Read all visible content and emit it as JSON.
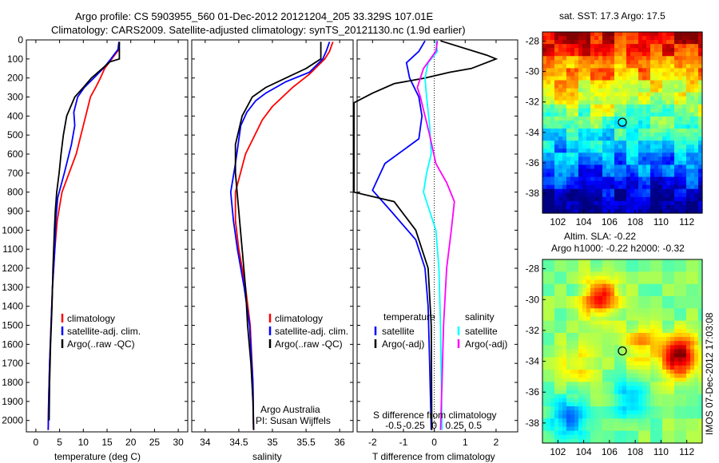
{
  "header": {
    "line1": "Argo profile: CS 5903955_560 01-Dec-2012 20121204_205 33.329S 107.01E",
    "line2": "Climatology: CARS2009. Satellite-adjusted climatology: synTS_20121130.nc (1.9d earlier)"
  },
  "side_stamp": "IMOS 07-Dec-2012 17:03:08",
  "colors": {
    "climatology": "#ff0000",
    "satellite": "#0000ff",
    "argo": "#000000",
    "sal_sat": "#00ffff",
    "sal_argo": "#ff00ff"
  },
  "chart_data": [
    {
      "type": "line",
      "xlabel": "temperature (deg C)",
      "xlim": [
        -2,
        32
      ],
      "xticks": [
        0,
        5,
        10,
        15,
        20,
        25,
        30
      ],
      "ylim": [
        2060,
        0
      ],
      "yticks": [
        0,
        100,
        200,
        300,
        400,
        500,
        600,
        700,
        800,
        900,
        1000,
        1100,
        1200,
        1300,
        1400,
        1500,
        1600,
        1700,
        1800,
        1900,
        2000
      ],
      "legend": [
        "climatology",
        "satellite-adj. clim.",
        "Argo(..raw -QC)"
      ],
      "series": [
        {
          "name": "climatology",
          "color": "#ff0000",
          "points": [
            [
              17.6,
              10
            ],
            [
              17.5,
              50
            ],
            [
              16,
              100
            ],
            [
              14.5,
              150
            ],
            [
              13.6,
              200
            ],
            [
              12.6,
              250
            ],
            [
              11.5,
              300
            ],
            [
              10.5,
              400
            ],
            [
              9.5,
              500
            ],
            [
              8.5,
              600
            ],
            [
              7,
              700
            ],
            [
              5.5,
              800
            ],
            [
              4.5,
              950
            ],
            [
              4,
              1100
            ],
            [
              3.5,
              1300
            ],
            [
              3.2,
              1500
            ],
            [
              2.9,
              1700
            ],
            [
              2.7,
              1900
            ],
            [
              2.6,
              2050
            ]
          ]
        },
        {
          "name": "satellite-adj. clim.",
          "color": "#0000ff",
          "points": [
            [
              17.5,
              10
            ],
            [
              17.3,
              50
            ],
            [
              15.8,
              100
            ],
            [
              14.2,
              150
            ],
            [
              12.2,
              200
            ],
            [
              10.2,
              250
            ],
            [
              8.8,
              300
            ],
            [
              8,
              380
            ],
            [
              8.2,
              450
            ],
            [
              7.5,
              550
            ],
            [
              6,
              700
            ],
            [
              4.6,
              830
            ],
            [
              4.2,
              950
            ],
            [
              4,
              1100
            ],
            [
              3.5,
              1300
            ],
            [
              3.2,
              1500
            ],
            [
              2.9,
              1700
            ],
            [
              2.7,
              1900
            ],
            [
              2.6,
              2050
            ]
          ]
        },
        {
          "name": "Argo(..raw -QC)",
          "color": "#000000",
          "points": [
            [
              17.6,
              10
            ],
            [
              17.6,
              30
            ],
            [
              17.6,
              100
            ],
            [
              15.6,
              115
            ],
            [
              14,
              150
            ],
            [
              11.7,
              200
            ],
            [
              10,
              250
            ],
            [
              8.2,
              300
            ],
            [
              6.5,
              400
            ],
            [
              5.8,
              500
            ],
            [
              5.3,
              600
            ],
            [
              4.9,
              700
            ],
            [
              4.4,
              800
            ],
            [
              4.1,
              900
            ],
            [
              3.9,
              1000
            ],
            [
              3.6,
              1200
            ],
            [
              3.4,
              1400
            ],
            [
              3.1,
              1600
            ],
            [
              2.9,
              1800
            ],
            [
              2.8,
              2000
            ]
          ]
        }
      ]
    },
    {
      "type": "line",
      "xlabel": "salinity",
      "xlim": [
        33.8,
        36.2
      ],
      "xticks": [
        34,
        34.5,
        35,
        35.5,
        36
      ],
      "ylim": [
        2060,
        0
      ],
      "legend": [
        "climatology",
        "satellite-adj. clim.",
        "Argo(..raw -QC)"
      ],
      "annotations": [
        "Argo Australia",
        "PI: Susan Wijffels"
      ],
      "series": [
        {
          "name": "climatology",
          "color": "#ff0000",
          "points": [
            [
              35.9,
              10
            ],
            [
              35.85,
              60
            ],
            [
              35.78,
              100
            ],
            [
              35.55,
              180
            ],
            [
              35.3,
              250
            ],
            [
              35.15,
              300
            ],
            [
              35.0,
              350
            ],
            [
              34.85,
              420
            ],
            [
              34.6,
              600
            ],
            [
              34.45,
              800
            ],
            [
              34.45,
              950
            ],
            [
              34.5,
              1100
            ],
            [
              34.6,
              1300
            ],
            [
              34.67,
              1500
            ],
            [
              34.71,
              1800
            ],
            [
              34.72,
              2050
            ]
          ]
        },
        {
          "name": "satellite-adj. clim.",
          "color": "#0000ff",
          "points": [
            [
              35.85,
              10
            ],
            [
              35.8,
              60
            ],
            [
              35.75,
              100
            ],
            [
              35.55,
              170
            ],
            [
              35.2,
              220
            ],
            [
              34.9,
              280
            ],
            [
              34.75,
              320
            ],
            [
              34.62,
              380
            ],
            [
              34.53,
              450
            ],
            [
              34.45,
              650
            ],
            [
              34.38,
              800
            ],
            [
              34.42,
              950
            ],
            [
              34.48,
              1100
            ],
            [
              34.58,
              1300
            ],
            [
              34.66,
              1500
            ],
            [
              34.71,
              1800
            ],
            [
              34.72,
              2050
            ]
          ]
        },
        {
          "name": "Argo(..raw -QC)",
          "color": "#000000",
          "points": [
            [
              35.72,
              10
            ],
            [
              35.72,
              100
            ],
            [
              35.5,
              150
            ],
            [
              35.2,
              200
            ],
            [
              34.9,
              250
            ],
            [
              34.7,
              300
            ],
            [
              34.55,
              400
            ],
            [
              34.45,
              550
            ],
            [
              34.45,
              700
            ],
            [
              34.5,
              900
            ],
            [
              34.55,
              1100
            ],
            [
              34.6,
              1300
            ],
            [
              34.63,
              1500
            ],
            [
              34.68,
              1700
            ],
            [
              34.71,
              1900
            ],
            [
              34.72,
              2050
            ]
          ]
        }
      ]
    },
    {
      "type": "line",
      "xlabel": "T difference from climatology",
      "top_label": "S difference from climatology",
      "xlim": [
        -2.5,
        2.7
      ],
      "xticks": [
        -2,
        -1,
        0,
        1,
        2
      ],
      "sticks": [
        "-0.5",
        "-0.25",
        "0",
        "0.25",
        "0.5"
      ],
      "ylim": [
        2060,
        0
      ],
      "legend_left_title": "temperature",
      "legend_right_title": "salinity",
      "legend": [
        "satellite",
        "Argo(-adj)",
        "satellite",
        "Argo(-adj)"
      ],
      "series": [
        {
          "name": "satellite",
          "color": "#0000ff",
          "points": [
            [
              -0.3,
              5
            ],
            [
              -0.5,
              60
            ],
            [
              -0.9,
              120
            ],
            [
              -0.8,
              200
            ],
            [
              -0.5,
              300
            ],
            [
              -0.4,
              400
            ],
            [
              -0.5,
              520
            ],
            [
              -1.6,
              650
            ],
            [
              -2,
              790
            ],
            [
              -1.4,
              900
            ],
            [
              -0.6,
              1050
            ],
            [
              -0.3,
              1200
            ],
            [
              -0.2,
              1400
            ],
            [
              -0.15,
              1700
            ],
            [
              -0.1,
              2050
            ]
          ]
        },
        {
          "name": "Argo(-adj)",
          "color": "#000000",
          "points": [
            [
              0.2,
              5
            ],
            [
              1.7,
              80
            ],
            [
              2.0,
              100
            ],
            [
              1.2,
              150
            ],
            [
              0.5,
              170
            ],
            [
              -0.3,
              200
            ],
            [
              -1.3,
              230
            ],
            [
              -2.0,
              280
            ],
            [
              -2.6,
              330
            ],
            [
              -2.6,
              800
            ],
            [
              -1.3,
              850
            ],
            [
              -0.6,
              1000
            ],
            [
              -0.2,
              1200
            ],
            [
              -0.1,
              1500
            ],
            [
              -0.08,
              2050
            ]
          ]
        },
        {
          "name": "satellite",
          "color": "#00ffff",
          "points": [
            [
              0.05,
              5
            ],
            [
              0.1,
              60
            ],
            [
              -0.2,
              120
            ],
            [
              -0.3,
              200
            ],
            [
              -0.25,
              300
            ],
            [
              -0.15,
              450
            ],
            [
              -0.1,
              600
            ],
            [
              -0.25,
              700
            ],
            [
              -0.35,
              800
            ],
            [
              -0.15,
              900
            ],
            [
              0.05,
              1000
            ],
            [
              0.15,
              1200
            ],
            [
              0.2,
              1500
            ],
            [
              0.25,
              2050
            ]
          ]
        },
        {
          "name": "Argo(-adj)",
          "color": "#ff00ff",
          "points": [
            [
              0.1,
              5
            ],
            [
              0.05,
              60
            ],
            [
              -0.35,
              150
            ],
            [
              -0.55,
              250
            ],
            [
              -0.45,
              300
            ],
            [
              -0.3,
              400
            ],
            [
              -0.15,
              500
            ],
            [
              0.05,
              650
            ],
            [
              0.4,
              750
            ],
            [
              0.65,
              850
            ],
            [
              0.55,
              1000
            ],
            [
              0.4,
              1200
            ],
            [
              0.3,
              1500
            ],
            [
              0.25,
              1800
            ],
            [
              0.2,
              2050
            ]
          ]
        }
      ]
    },
    {
      "type": "heatmap",
      "title": "sat. SST: 17.3  Argo: 17.5",
      "xlim": [
        100.8,
        113.2
      ],
      "ylim": [
        -39.3,
        -27.4
      ],
      "xticks": [
        102,
        104,
        106,
        108,
        110,
        112
      ],
      "yticks": [
        -28,
        -30,
        -32,
        -34,
        -36,
        -38
      ],
      "marker": [
        107.0,
        -33.33
      ]
    },
    {
      "type": "heatmap",
      "title_line1": "Altim. SLA: -0.22",
      "title_line2": "Argo h1000: -0.22  h2000: -0.32",
      "xlim": [
        100.8,
        113.2
      ],
      "ylim": [
        -39.3,
        -27.4
      ],
      "xticks": [
        102,
        104,
        106,
        108,
        110,
        112
      ],
      "yticks": [
        -28,
        -30,
        -32,
        -34,
        -36,
        -38
      ],
      "marker": [
        107.0,
        -33.33
      ]
    }
  ]
}
